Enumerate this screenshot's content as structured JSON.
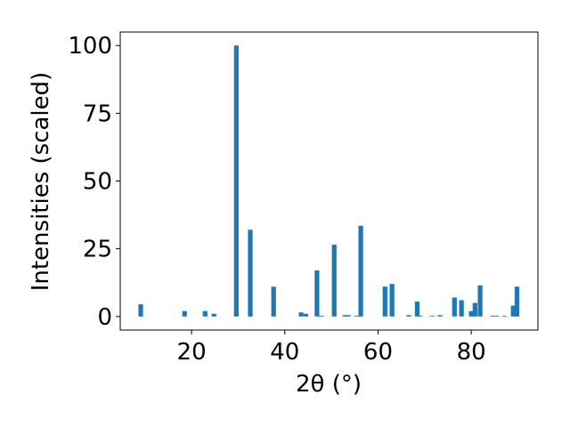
{
  "chart_data": {
    "type": "bar",
    "xlabel": "2θ (°)",
    "ylabel": "Intensities (scaled)",
    "x": [
      9.1,
      18.5,
      22.9,
      24.8,
      29.6,
      32.6,
      37.6,
      43.5,
      44.5,
      46.9,
      47.9,
      50.6,
      52.9,
      53.6,
      55.4,
      56.3,
      61.5,
      63.0,
      66.6,
      68.4,
      69.1,
      71.6,
      73.3,
      76.4,
      77.9,
      80.0,
      80.8,
      81.9,
      84.6,
      85.4,
      87.1,
      89.0,
      89.8
    ],
    "values": [
      4.5,
      2,
      2,
      1,
      100,
      32,
      11,
      1.5,
      1,
      17,
      0.3,
      26.5,
      0.5,
      0.5,
      0.3,
      33.5,
      11,
      12,
      0.5,
      5.5,
      0.3,
      0.3,
      0.5,
      7,
      6,
      2,
      5,
      11.5,
      0.3,
      0.3,
      0.3,
      4,
      11
    ],
    "color": "#1f77b4",
    "xlim": [
      4.7,
      94.3
    ],
    "xticks": [
      20,
      40,
      60,
      80
    ],
    "ylim": [
      -5,
      105
    ],
    "yticks": [
      0,
      25,
      50,
      75,
      100
    ]
  }
}
